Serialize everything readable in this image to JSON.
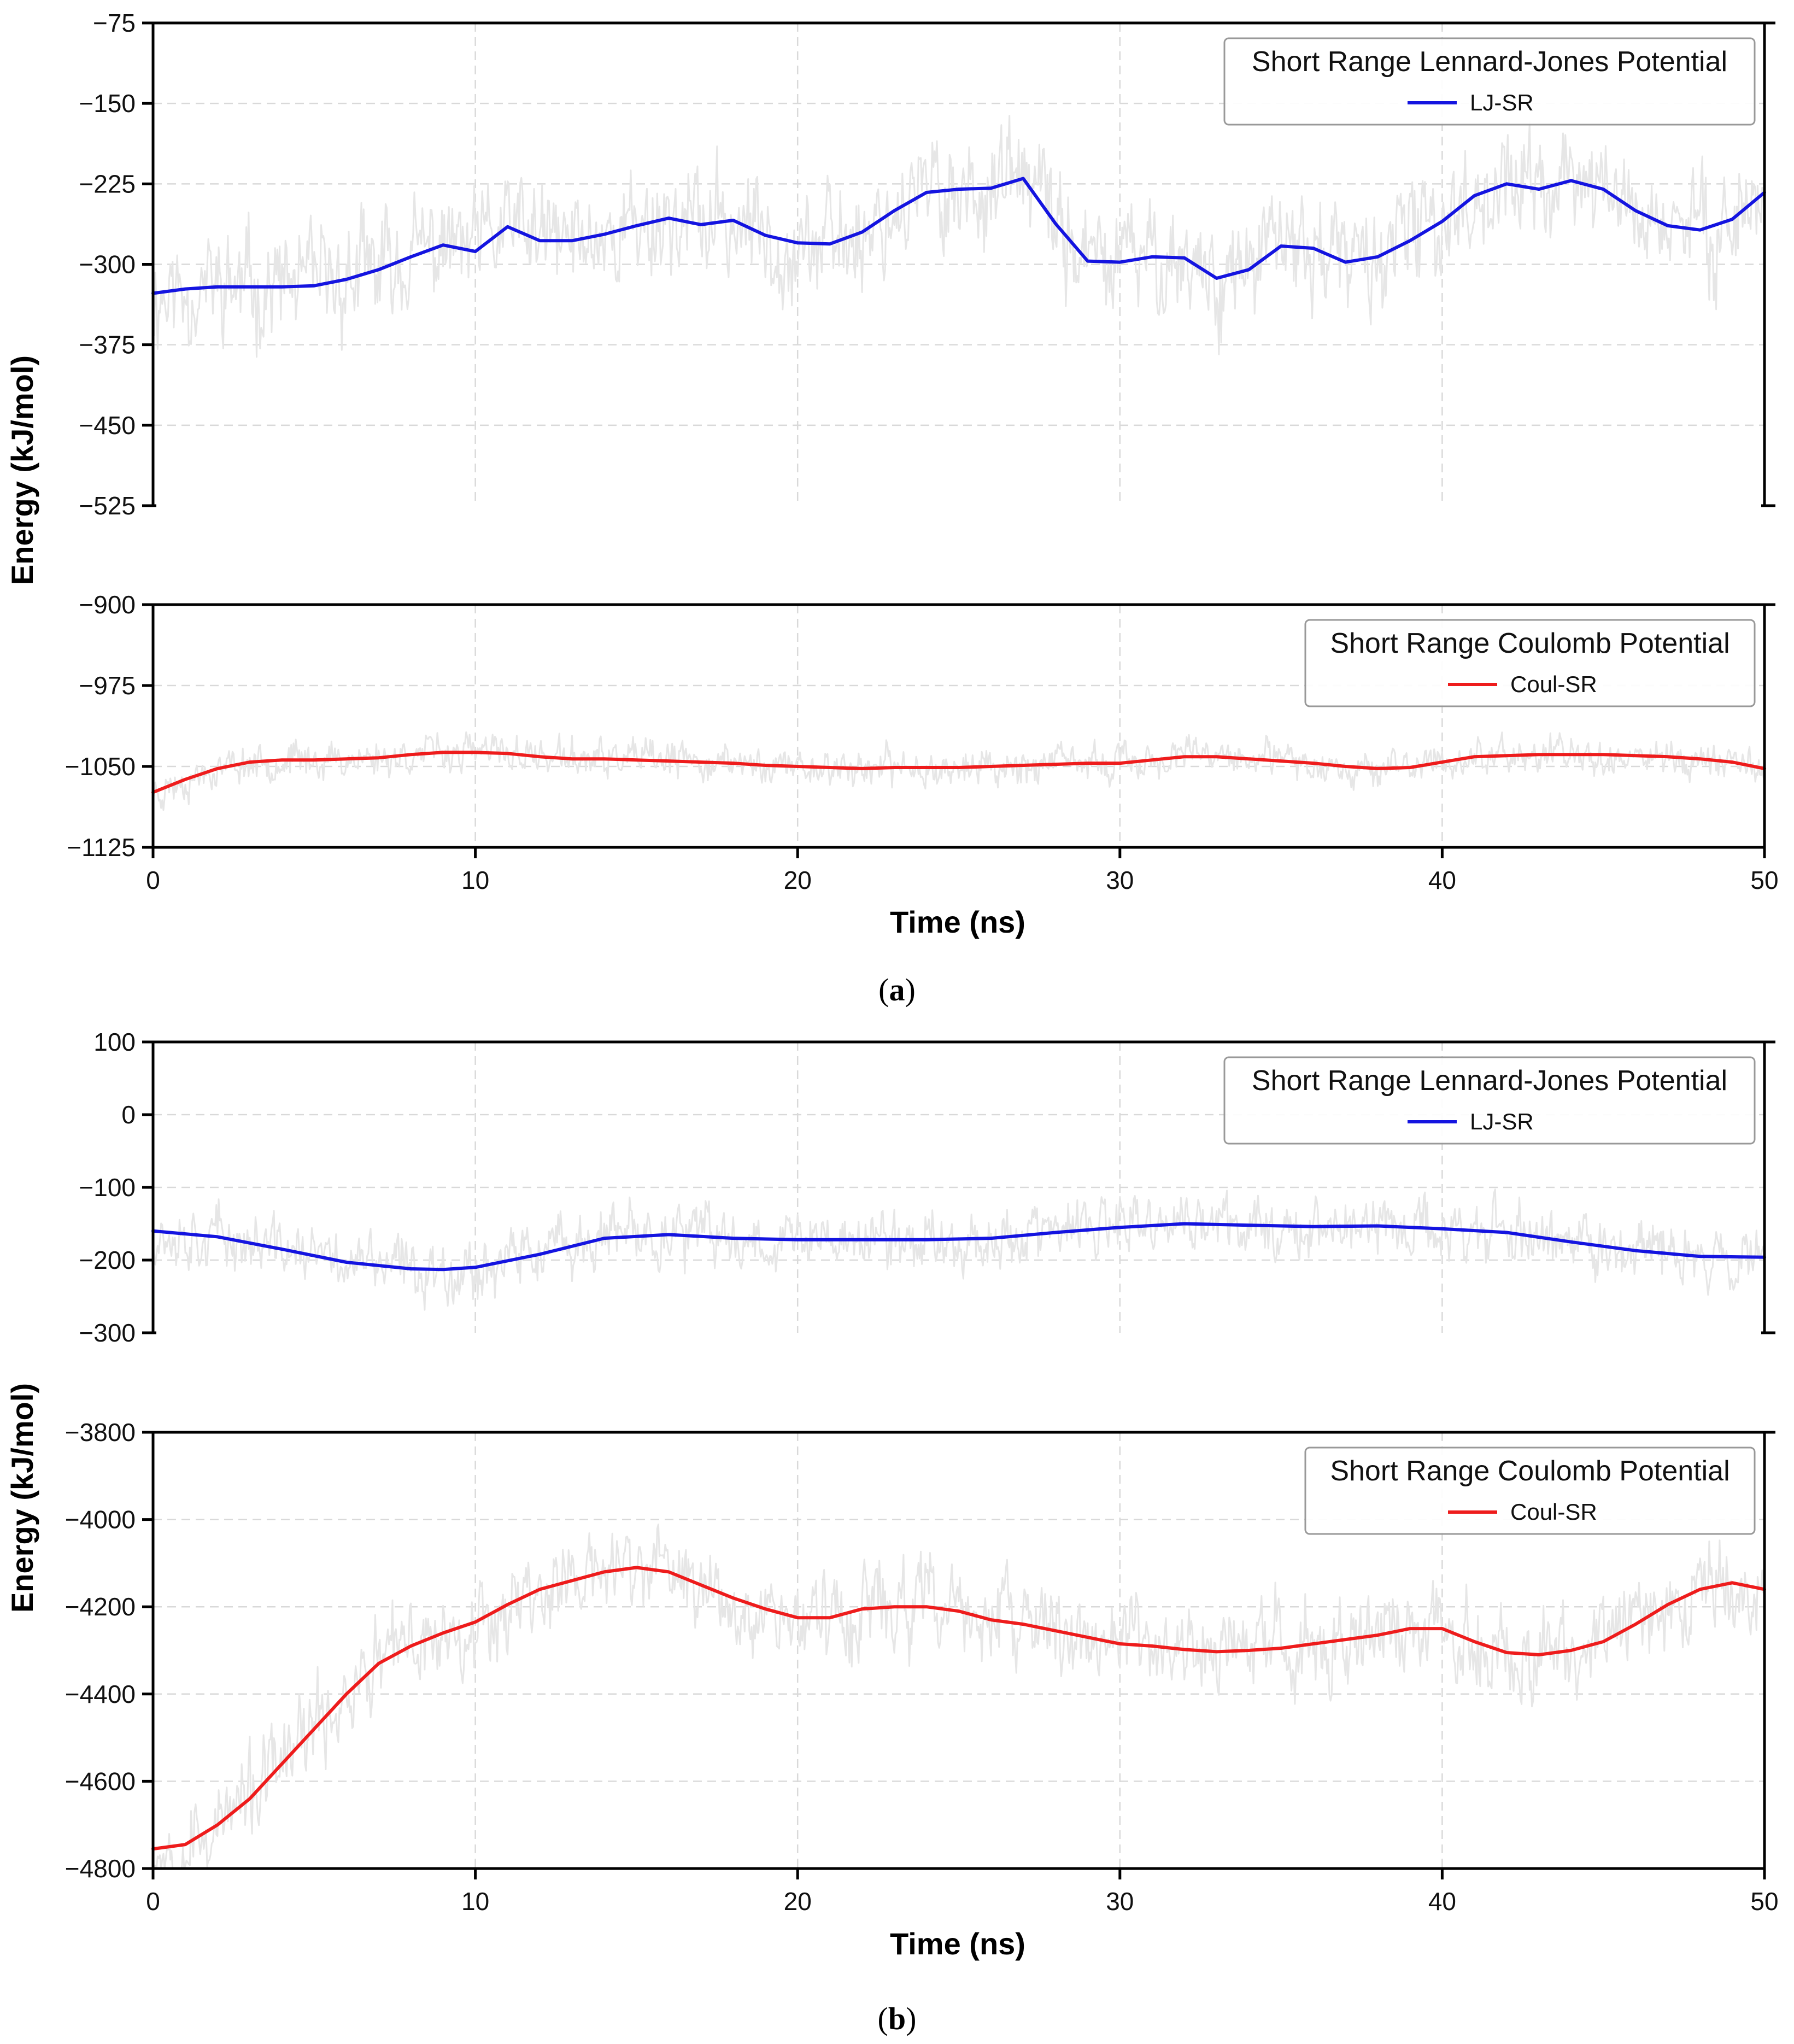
{
  "figure": {
    "caption_a": "a",
    "caption_b": "b"
  },
  "chart_data": [
    {
      "id": "a-top",
      "type": "line",
      "title": "",
      "xlabel": "Time (ns)",
      "ylabel": "Energy (kJ/mol)",
      "xlim": [
        0,
        50
      ],
      "ylim": [
        -525,
        -75
      ],
      "yticks": [
        -75,
        -150,
        -225,
        -300,
        -375,
        -450,
        -525
      ],
      "grid": true,
      "legend": {
        "title": "Short Range Lennard-Jones Potential",
        "entry": "LJ-SR",
        "placement": "top-right"
      },
      "series": [
        {
          "name": "LJ-SR",
          "color": "#1414e0",
          "x": [
            0,
            1,
            2,
            3,
            4,
            5,
            6,
            7,
            8,
            9,
            10,
            11,
            12,
            13,
            14,
            15,
            16,
            17,
            18,
            19,
            20,
            21,
            22,
            23,
            24,
            25,
            26,
            27,
            28,
            29,
            30,
            31,
            32,
            33,
            34,
            35,
            36,
            37,
            38,
            39,
            40,
            41,
            42,
            43,
            44,
            45,
            46,
            47,
            48,
            49,
            50
          ],
          "y": [
            -327,
            -323,
            -321,
            -321,
            -321,
            -320,
            -314,
            -305,
            -293,
            -282,
            -288,
            -265,
            -278,
            -278,
            -272,
            -264,
            -257,
            -263,
            -259,
            -273,
            -280,
            -281,
            -270,
            -250,
            -233,
            -230,
            -229,
            -220,
            -262,
            -297,
            -298,
            -293,
            -294,
            -313,
            -305,
            -283,
            -285,
            -298,
            -293,
            -278,
            -260,
            -236,
            -225,
            -230,
            -222,
            -230,
            -250,
            -264,
            -268,
            -258,
            -233
          ]
        },
        {
          "name": "raw",
          "color": "#e6e6e6",
          "noise": {
            "amplitude": 55,
            "seed": 11
          }
        }
      ]
    },
    {
      "id": "a-bottom",
      "type": "line",
      "title": "",
      "xlabel": "Time (ns)",
      "ylabel": "Energy (kJ/mol)",
      "xlim": [
        0,
        50
      ],
      "ylim": [
        -1125,
        -900
      ],
      "yticks": [
        -900,
        -975,
        -1050,
        -1125
      ],
      "xticks": [
        0,
        10,
        20,
        30,
        40,
        50
      ],
      "grid": true,
      "legend": {
        "title": "Short Range Coulomb Potential",
        "entry": "Coul-SR",
        "placement": "top-right"
      },
      "series": [
        {
          "name": "Coul-SR",
          "color": "#ee1c1c",
          "x": [
            0,
            1,
            2,
            3,
            4,
            5,
            6,
            7,
            8,
            9,
            10,
            11,
            12,
            13,
            14,
            15,
            16,
            17,
            18,
            19,
            20,
            21,
            22,
            23,
            24,
            25,
            26,
            27,
            28,
            29,
            30,
            31,
            32,
            33,
            34,
            35,
            36,
            37,
            38,
            39,
            40,
            41,
            42,
            43,
            44,
            45,
            46,
            47,
            48,
            49,
            50
          ],
          "y": [
            -1074,
            -1062,
            -1052,
            -1046,
            -1044,
            -1044,
            -1043,
            -1042,
            -1039,
            -1037,
            -1037,
            -1038,
            -1041,
            -1043,
            -1043,
            -1044,
            -1045,
            -1046,
            -1047,
            -1049,
            -1050,
            -1051,
            -1052,
            -1051,
            -1051,
            -1051,
            -1050,
            -1049,
            -1048,
            -1047,
            -1047,
            -1044,
            -1041,
            -1041,
            -1043,
            -1045,
            -1047,
            -1050,
            -1052,
            -1051,
            -1046,
            -1041,
            -1040,
            -1039,
            -1039,
            -1039,
            -1040,
            -1041,
            -1043,
            -1046,
            -1052
          ]
        },
        {
          "name": "raw",
          "color": "#e6e6e6",
          "noise": {
            "amplitude": 18,
            "seed": 23
          }
        }
      ]
    },
    {
      "id": "b-top",
      "type": "line",
      "title": "",
      "xlabel": "Time (ns)",
      "ylabel": "Energy (kJ/mol)",
      "xlim": [
        0,
        50
      ],
      "ylim": [
        -300,
        100
      ],
      "yticks": [
        100,
        0,
        -100,
        -200,
        -300
      ],
      "grid": true,
      "legend": {
        "title": "Short Range Lennard-Jones Potential",
        "entry": "LJ-SR",
        "placement": "top-right"
      },
      "series": [
        {
          "name": "LJ-SR",
          "color": "#1414e0",
          "x": [
            0,
            2,
            4,
            6,
            8,
            9,
            10,
            12,
            14,
            16,
            18,
            20,
            22,
            24,
            26,
            28,
            30,
            32,
            34,
            36,
            38,
            40,
            42,
            44,
            46,
            48,
            50
          ],
          "y": [
            -160,
            -168,
            -185,
            -203,
            -212,
            -213,
            -210,
            -192,
            -170,
            -165,
            -170,
            -172,
            -172,
            -172,
            -170,
            -162,
            -155,
            -150,
            -152,
            -154,
            -153,
            -157,
            -162,
            -175,
            -187,
            -195,
            -196
          ]
        },
        {
          "name": "raw",
          "color": "#e6e6e6",
          "noise": {
            "amplitude": 45,
            "seed": 37
          }
        }
      ]
    },
    {
      "id": "b-bottom",
      "type": "line",
      "title": "",
      "xlabel": "Time (ns)",
      "ylabel": "Energy (kJ/mol)",
      "xlim": [
        0,
        50
      ],
      "ylim": [
        -4800,
        -3800
      ],
      "yticks": [
        -3800,
        -4000,
        -4200,
        -4400,
        -4600,
        -4800
      ],
      "xticks": [
        0,
        10,
        20,
        30,
        40,
        50
      ],
      "grid": true,
      "legend": {
        "title": "Short Range Coulomb Potential",
        "entry": "Coul-SR",
        "placement": "top-right"
      },
      "series": [
        {
          "name": "Coul-SR",
          "color": "#ee1c1c",
          "x": [
            0,
            1,
            2,
            3,
            4,
            5,
            6,
            7,
            8,
            9,
            10,
            11,
            12,
            13,
            14,
            15,
            16,
            17,
            18,
            19,
            20,
            21,
            22,
            23,
            24,
            25,
            26,
            27,
            28,
            29,
            30,
            31,
            32,
            33,
            34,
            35,
            36,
            37,
            38,
            39,
            40,
            41,
            42,
            43,
            44,
            45,
            46,
            47,
            48,
            49,
            50
          ],
          "y": [
            -4755,
            -4745,
            -4700,
            -4640,
            -4560,
            -4480,
            -4400,
            -4330,
            -4290,
            -4260,
            -4235,
            -4195,
            -4160,
            -4140,
            -4120,
            -4110,
            -4120,
            -4150,
            -4180,
            -4205,
            -4225,
            -4225,
            -4205,
            -4200,
            -4200,
            -4210,
            -4230,
            -4240,
            -4255,
            -4270,
            -4285,
            -4290,
            -4298,
            -4303,
            -4300,
            -4295,
            -4285,
            -4275,
            -4265,
            -4250,
            -4250,
            -4280,
            -4305,
            -4310,
            -4300,
            -4280,
            -4240,
            -4195,
            -4160,
            -4145,
            -4160
          ]
        },
        {
          "name": "raw",
          "color": "#e6e6e6",
          "noise": {
            "amplitude": 110,
            "seed": 53
          }
        }
      ]
    }
  ]
}
